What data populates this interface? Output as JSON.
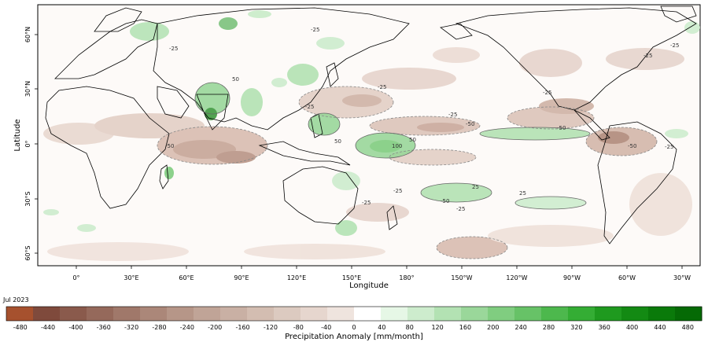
{
  "map": {
    "xlabel": "Longitude",
    "ylabel": "Latitude",
    "x_ticks": [
      "0°",
      "30°E",
      "60°E",
      "90°E",
      "120°E",
      "150°E",
      "180°",
      "150°W",
      "120°W",
      "90°W",
      "60°W",
      "30°W"
    ],
    "y_ticks": [
      "60°N",
      "30°N",
      "0°",
      "30°S",
      "60°S"
    ],
    "contour_labels": [
      "-25",
      "-25",
      "-25",
      "-25",
      "-25",
      "-25",
      "-25",
      "-50",
      "-50",
      "-50",
      "-50",
      "-25",
      "50",
      "50",
      "100",
      "50",
      "25",
      "25",
      "-25",
      "-25",
      "-50",
      "-25",
      "-25"
    ]
  },
  "colorbar": {
    "date": "Jul 2023",
    "title": "Precipitation Anomaly [mm/month]",
    "tick_labels": [
      "-480",
      "-440",
      "-400",
      "-360",
      "-320",
      "-280",
      "-240",
      "-200",
      "-160",
      "-120",
      "-80",
      "-40",
      "0",
      "40",
      "80",
      "120",
      "160",
      "200",
      "240",
      "280",
      "320",
      "360",
      "400",
      "440",
      "480"
    ],
    "colors": [
      "#a6512e",
      "#7f4a3c",
      "#8a5a4c",
      "#95695b",
      "#a0786a",
      "#ab8779",
      "#b69688",
      "#c0a497",
      "#c9b0a4",
      "#d3bdb1",
      "#dccac0",
      "#e6d6ce",
      "#efe4de",
      "#ffffff",
      "#e6f7e6",
      "#cdeccd",
      "#b3e2b3",
      "#9ad79a",
      "#80cd80",
      "#67c267",
      "#4db84d",
      "#34ad34",
      "#1f9a1f",
      "#138a13",
      "#0a7a0a",
      "#056a05"
    ]
  }
}
